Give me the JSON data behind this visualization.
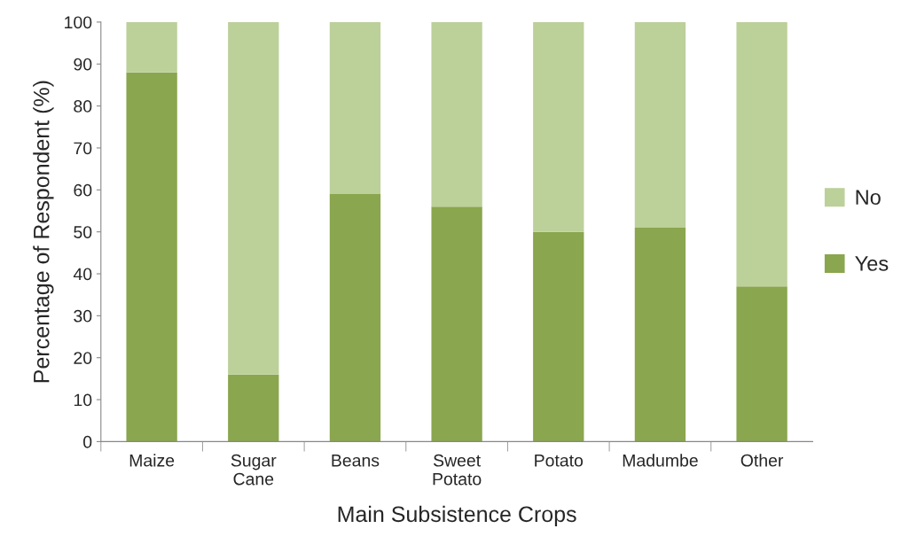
{
  "chart_data": {
    "type": "bar",
    "stacked": true,
    "xlabel": "Main Subsistence Crops",
    "ylabel": "Percentage of Respondent (%)",
    "categories": [
      "Maize",
      "Sugar\nCane",
      "Beans",
      "Sweet\nPotato",
      "Potato",
      "Madumbe",
      "Other"
    ],
    "series": [
      {
        "name": "Yes",
        "color": "#8aa64e",
        "values": [
          88,
          16,
          59,
          56,
          50,
          51,
          37
        ]
      },
      {
        "name": "No",
        "color": "#bcd09a",
        "values": [
          12,
          84,
          41,
          44,
          50,
          49,
          63
        ]
      }
    ],
    "ylim": [
      0,
      100
    ],
    "yticks": [
      0,
      10,
      20,
      30,
      40,
      50,
      60,
      70,
      80,
      90,
      100
    ],
    "grid": false,
    "legend": "right"
  }
}
